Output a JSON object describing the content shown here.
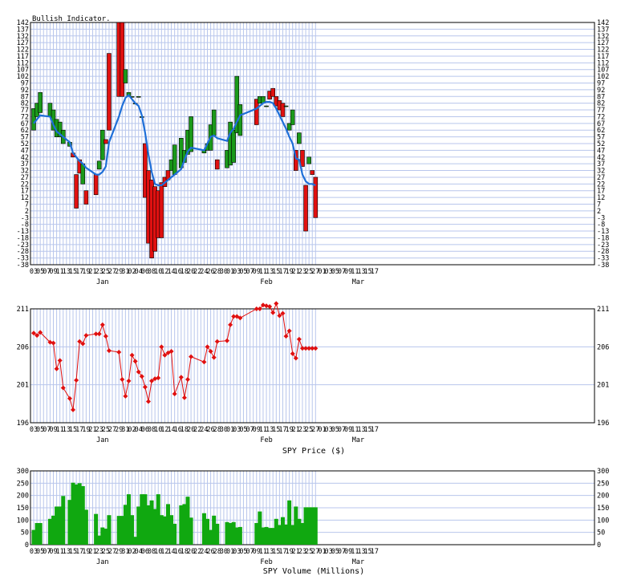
{
  "colors": {
    "grid": "#b8c6ec",
    "up": "#1a9a1a",
    "down": "#e01010",
    "avg": "#1e6fd8",
    "price": "#e01010",
    "volume": "#10a810"
  },
  "panels": {
    "bullish": {
      "title": "Bullish Indicator."
    },
    "price": {
      "xlabel": "SPY Price ($)"
    },
    "volume": {
      "xlabel": "SPY Volume (Millions)"
    }
  },
  "x_axis": {
    "day_labels": [
      "03",
      "05",
      "07",
      "09",
      "11",
      "13",
      "15",
      "17",
      "19",
      "21",
      "23",
      "25",
      "27",
      "29",
      "31",
      "02",
      "04",
      "06",
      "08",
      "10",
      "12",
      "14",
      "16",
      "18",
      "20",
      "22",
      "24",
      "26",
      "28",
      "30",
      "01",
      "03",
      "05",
      "07",
      "09",
      "11",
      "13",
      "15",
      "17",
      "19",
      "21",
      "23",
      "25",
      "27",
      "01",
      "03",
      "05",
      "07",
      "09",
      "11",
      "13",
      "15",
      "17"
    ],
    "month_labels": [
      {
        "label": "Jan",
        "day_index": 10.5
      },
      {
        "label": "Feb",
        "day_index": 35.5
      },
      {
        "label": "Mar",
        "day_index": 49.5
      }
    ]
  },
  "chart_data": [
    {
      "type": "bar",
      "name": "bullish-indicator",
      "title": "Bullish Indicator.",
      "ylim": [
        -38,
        142
      ],
      "yticks": [
        142,
        137,
        132,
        127,
        122,
        117,
        112,
        107,
        102,
        97,
        92,
        87,
        82,
        77,
        72,
        67,
        62,
        57,
        52,
        47,
        42,
        37,
        32,
        27,
        22,
        17,
        12,
        7,
        2,
        -3,
        -8,
        -13,
        -18,
        -23,
        -28,
        -33,
        -38
      ],
      "x": [
        0,
        0.5,
        1,
        2.5,
        3,
        3.5,
        4,
        4.5,
        5.5,
        6,
        6.5,
        7,
        7.5,
        8,
        9.5,
        10,
        10.5,
        11,
        11.5,
        13,
        13.5,
        14,
        14.5,
        15,
        15.5,
        16,
        16.5,
        17,
        17.5,
        18,
        18.5,
        19,
        19.5,
        20,
        20.5,
        21,
        21.5,
        22.5,
        23,
        23.5,
        24,
        26,
        26.5,
        27,
        27.5,
        28,
        29.5,
        30,
        30.5,
        31,
        31.5,
        34,
        34.5,
        35,
        35.5,
        36,
        36.5,
        37,
        37.5,
        38,
        38.5,
        39,
        39.5,
        40,
        40.5,
        41,
        41.5,
        42,
        42.5,
        43
      ],
      "open": [
        62,
        72,
        75,
        72,
        62,
        57,
        57,
        52,
        50,
        45,
        29,
        40,
        22,
        17,
        29,
        33,
        40,
        55,
        119,
        142,
        142,
        97,
        87,
        87,
        82,
        87,
        72,
        52,
        32,
        25,
        20,
        17,
        23,
        27,
        32,
        32,
        29,
        34,
        38,
        44,
        46,
        45,
        47,
        47,
        58,
        40,
        34,
        36,
        38,
        60,
        58,
        85,
        82,
        82,
        80,
        91,
        93,
        87,
        84,
        82,
        80,
        62,
        66,
        47,
        52,
        47,
        21,
        37,
        32,
        27
      ],
      "close": [
        78,
        82,
        90,
        82,
        77,
        70,
        68,
        62,
        53,
        42,
        4,
        30,
        37,
        7,
        14,
        39,
        62,
        52,
        62,
        87,
        87,
        107,
        90,
        87,
        82,
        87,
        72,
        12,
        -22,
        -33,
        -28,
        -18,
        -18,
        20,
        25,
        40,
        51,
        56,
        47,
        62,
        72,
        47,
        52,
        66,
        77,
        33,
        47,
        68,
        62,
        102,
        81,
        66,
        87,
        87,
        80,
        85,
        87,
        80,
        77,
        72,
        80,
        67,
        77,
        32,
        60,
        35,
        -13,
        42,
        29,
        -3
      ],
      "avg": [
        67,
        70,
        73,
        72,
        66,
        61,
        59,
        57,
        53,
        45,
        42,
        39,
        37,
        34,
        29,
        29,
        31,
        35,
        53,
        72,
        80,
        86,
        88,
        85,
        82,
        80,
        73,
        60,
        44,
        31,
        22,
        21,
        21,
        23,
        25,
        27,
        29,
        33,
        40,
        46,
        49,
        47,
        52,
        57,
        58,
        56,
        54,
        60,
        63,
        68,
        73,
        78,
        80,
        82,
        83,
        83,
        82,
        78,
        73,
        68,
        63,
        57,
        52,
        41,
        40,
        29,
        24,
        22,
        22,
        21
      ]
    },
    {
      "type": "line",
      "name": "spy-price",
      "xlabel": "SPY Price ($)",
      "ylim": [
        196,
        211
      ],
      "yticks": [
        211,
        206,
        201,
        196
      ],
      "x": [
        0,
        0.5,
        1,
        2.5,
        3,
        3.5,
        4,
        4.5,
        5.5,
        6,
        6.5,
        7,
        7.5,
        8,
        9.5,
        10,
        10.5,
        11,
        11.5,
        13,
        13.5,
        14,
        14.5,
        15,
        15.5,
        16,
        16.5,
        17,
        17.5,
        18,
        18.5,
        19,
        19.5,
        20,
        20.5,
        21,
        21.5,
        22.5,
        23,
        23.5,
        24,
        26,
        26.5,
        27,
        27.5,
        28,
        29.5,
        30,
        30.5,
        31,
        31.5,
        34,
        34.5,
        35,
        35.5,
        36,
        36.5,
        37,
        37.5,
        38,
        38.5,
        39,
        39.5,
        40,
        40.5,
        41,
        41.5,
        42,
        42.5,
        43
      ],
      "y": [
        207.8,
        207.5,
        207.9,
        206.6,
        206.5,
        203.1,
        204.2,
        200.6,
        199.2,
        197.7,
        201.6,
        206.7,
        206.4,
        207.5,
        207.7,
        207.7,
        208.9,
        207.4,
        205.5,
        205.3,
        201.7,
        199.5,
        201.5,
        204.9,
        204.1,
        202.7,
        202.1,
        200.7,
        198.8,
        201.5,
        201.8,
        201.9,
        206.0,
        204.9,
        205.2,
        205.4,
        199.8,
        202.0,
        199.3,
        201.7,
        204.7,
        204.0,
        206.0,
        205.4,
        204.6,
        206.7,
        206.8,
        208.9,
        210.0,
        210.0,
        209.8,
        211.0,
        211.0,
        211.5,
        211.4,
        211.3,
        210.5,
        211.7,
        210.1,
        210.4,
        207.4,
        208.1,
        205.1,
        204.5,
        207.0,
        205.8,
        205.8,
        205.8,
        205.8,
        205.8
      ]
    },
    {
      "type": "bar",
      "name": "spy-volume",
      "xlabel": "SPY Volume (Millions)",
      "ylim": [
        0,
        300
      ],
      "yticks": [
        300,
        250,
        200,
        150,
        100,
        50,
        0
      ],
      "x": [
        0,
        0.5,
        1,
        2.5,
        3,
        3.5,
        4,
        4.5,
        5.5,
        6,
        6.5,
        7,
        7.5,
        8,
        9.5,
        10,
        10.5,
        11,
        11.5,
        13,
        13.5,
        14,
        14.5,
        15,
        15.5,
        16,
        16.5,
        17,
        17.5,
        18,
        18.5,
        19,
        19.5,
        20,
        20.5,
        21,
        21.5,
        22.5,
        23,
        23.5,
        24,
        26,
        26.5,
        27,
        27.5,
        28,
        29.5,
        30,
        30.5,
        31,
        31.5,
        34,
        34.5,
        35,
        35.5,
        36,
        36.5,
        37,
        37.5,
        38,
        38.5,
        39,
        39.5,
        40,
        40.5,
        41,
        41.5,
        42,
        42.5,
        43
      ],
      "values": [
        60,
        88,
        88,
        105,
        118,
        155,
        155,
        198,
        182,
        252,
        245,
        250,
        238,
        142,
        125,
        37,
        70,
        65,
        120,
        117,
        117,
        162,
        205,
        120,
        32,
        155,
        205,
        205,
        160,
        180,
        145,
        205,
        120,
        115,
        165,
        120,
        85,
        160,
        165,
        195,
        110,
        128,
        105,
        60,
        118,
        85,
        92,
        88,
        92,
        70,
        72,
        88,
        135,
        70,
        72,
        68,
        68,
        105,
        80,
        112,
        82,
        180,
        80,
        155,
        105,
        88,
        152,
        152,
        152,
        152
      ]
    }
  ]
}
